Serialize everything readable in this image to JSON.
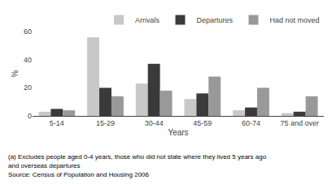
{
  "chart_data": {
    "type": "bar",
    "categories": [
      "5-14",
      "15-29",
      "30-44",
      "45-59",
      "60-74",
      "75 and over"
    ],
    "series": [
      {
        "name": "Arrivals",
        "color": "#c8c8c8",
        "values": [
          3,
          56,
          23,
          12,
          4,
          2
        ]
      },
      {
        "name": "Departures",
        "color": "#3a3a3a",
        "values": [
          5,
          20,
          37,
          16,
          6,
          3
        ]
      },
      {
        "name": "Had not moved",
        "color": "#999999",
        "values": [
          4,
          14,
          18,
          28,
          20,
          14
        ]
      }
    ],
    "xlabel": "Years",
    "ylabel": "%",
    "ylim": [
      0,
      60
    ],
    "yticks": [
      0,
      20,
      40,
      60
    ],
    "grid": false,
    "legend": "upper right",
    "annotations": [
      "(a) Excludes people aged 0-4 years, those who did not state where they lived 5 years ago",
      "and overseas departures",
      "Source: Census of Population and Housing 2006"
    ]
  }
}
